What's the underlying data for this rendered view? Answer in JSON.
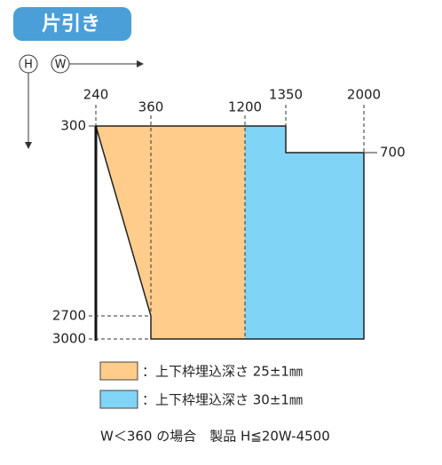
{
  "header": {
    "badge": "片引き"
  },
  "axis": {
    "h": "H",
    "w": "W"
  },
  "x_labels": [
    "240",
    "360",
    "1200",
    "1350",
    "2000"
  ],
  "y_labels": [
    "300",
    "700",
    "2700",
    "3000"
  ],
  "legend": [
    {
      "label": "：上下枠埋込深さ 25±1㎜",
      "color": "#ffcc8c"
    },
    {
      "label": "：上下枠埋込深さ 30±1㎜",
      "color": "#80d4f6"
    }
  ],
  "note": "W＜360 の場合　製品 H≦20W-4500"
}
